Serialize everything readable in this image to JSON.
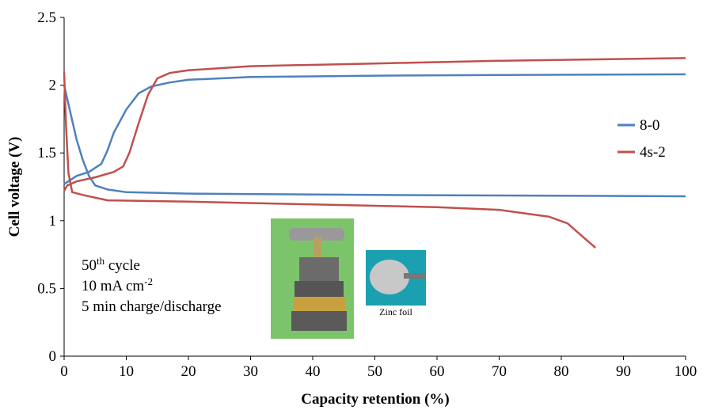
{
  "chart_data": {
    "type": "line",
    "xlabel": "Capacity retention (%)",
    "ylabel": "Cell voltage (V)",
    "xlim": [
      0,
      100
    ],
    "xticks": [
      0,
      10,
      20,
      30,
      40,
      50,
      60,
      70,
      80,
      90,
      100
    ],
    "ylim": [
      0,
      2.5
    ],
    "yticks": [
      0,
      0.5,
      1,
      1.5,
      2,
      2.5
    ],
    "legend": "right",
    "series": [
      {
        "name": "8-0",
        "color": "#4f81bd",
        "x": [
          0,
          2,
          4,
          6,
          7,
          8,
          10,
          12,
          14,
          17,
          20,
          30,
          50,
          70,
          100,
          null,
          0,
          1,
          2,
          3,
          4,
          5,
          7,
          10,
          20,
          50,
          100
        ],
        "values": [
          1.27,
          1.33,
          1.36,
          1.42,
          1.52,
          1.65,
          1.82,
          1.94,
          1.99,
          2.02,
          2.04,
          2.06,
          2.07,
          2.075,
          2.08,
          null,
          2.0,
          1.8,
          1.6,
          1.45,
          1.33,
          1.26,
          1.23,
          1.21,
          1.2,
          1.19,
          1.18
        ]
      },
      {
        "name": "4s-2",
        "color": "#c0504d",
        "x": [
          0,
          0.5,
          2,
          5,
          8,
          9.5,
          10.5,
          12,
          13.5,
          15,
          17,
          20,
          30,
          50,
          70,
          100,
          null,
          0,
          0.3,
          0.7,
          1.3,
          3,
          7,
          20,
          40,
          60,
          70,
          78,
          81,
          83,
          85.5
        ],
        "values": [
          1.22,
          1.26,
          1.29,
          1.32,
          1.36,
          1.4,
          1.5,
          1.72,
          1.93,
          2.05,
          2.09,
          2.11,
          2.14,
          2.16,
          2.18,
          2.2,
          null,
          2.1,
          1.7,
          1.35,
          1.21,
          1.19,
          1.15,
          1.14,
          1.12,
          1.1,
          1.08,
          1.03,
          0.98,
          0.9,
          0.8
        ]
      }
    ],
    "annotation": {
      "cycle": "50",
      "cycle_sup": "th",
      "cycle_rest": " cycle",
      "current": "10 mA cm",
      "current_sup": "-2",
      "protocol": "5 min charge/discharge",
      "photo_label": "Zinc foil"
    }
  }
}
